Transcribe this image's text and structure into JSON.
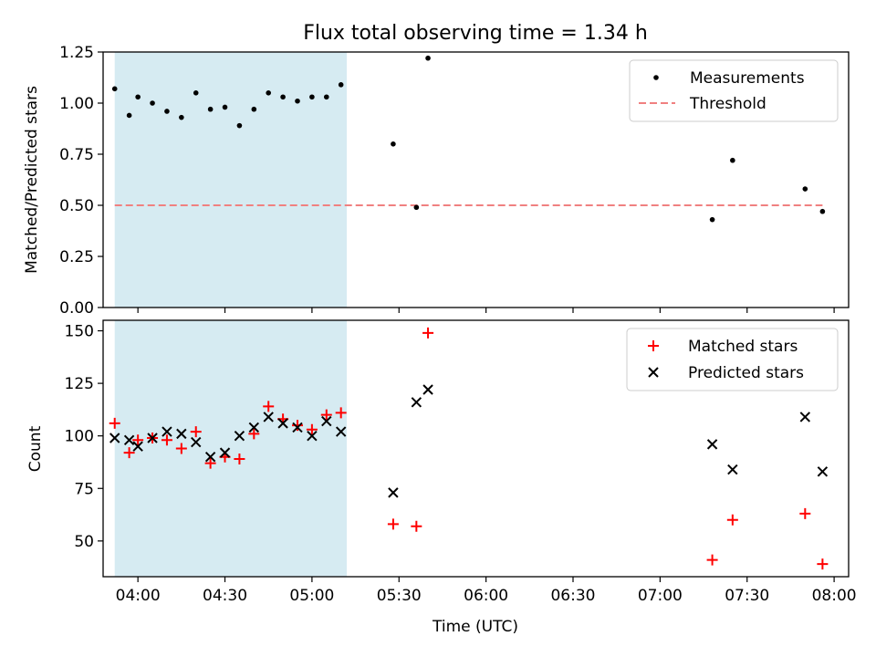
{
  "chart_data": [
    {
      "type": "scatter",
      "title": "Flux total observing time = 1.34 h",
      "xlabel": "",
      "ylabel": "Matched/Predicted stars",
      "ylim": [
        0,
        1.25
      ],
      "yticks": [
        "0.00",
        "0.25",
        "0.50",
        "0.75",
        "1.00",
        "1.25"
      ],
      "xticks": [
        "04:00",
        "04:30",
        "05:00",
        "05:30",
        "06:00",
        "06:30",
        "07:00",
        "07:30",
        "08:00"
      ],
      "xlim": [
        "03:48",
        "08:05"
      ],
      "shaded_interval": [
        "03:52",
        "05:12"
      ],
      "shade_color": "#add8e6",
      "legend_position": "top-right",
      "legend": [
        "Measurements",
        "Threshold"
      ],
      "threshold": {
        "name": "Threshold",
        "value": 0.5,
        "x_start": "03:52",
        "x_end": "07:56",
        "color": "#f08080",
        "style": "dashed"
      },
      "series": [
        {
          "name": "Measurements",
          "color": "#000000",
          "marker": "dot",
          "points": [
            [
              "03:52",
              1.07
            ],
            [
              "03:57",
              0.94
            ],
            [
              "04:00",
              1.03
            ],
            [
              "04:05",
              1.0
            ],
            [
              "04:10",
              0.96
            ],
            [
              "04:15",
              0.93
            ],
            [
              "04:20",
              1.05
            ],
            [
              "04:25",
              0.97
            ],
            [
              "04:30",
              0.98
            ],
            [
              "04:35",
              0.89
            ],
            [
              "04:40",
              0.97
            ],
            [
              "04:45",
              1.05
            ],
            [
              "04:50",
              1.03
            ],
            [
              "04:55",
              1.01
            ],
            [
              "05:00",
              1.03
            ],
            [
              "05:05",
              1.03
            ],
            [
              "05:10",
              1.09
            ],
            [
              "05:28",
              0.8
            ],
            [
              "05:36",
              0.49
            ],
            [
              "05:40",
              1.22
            ],
            [
              "07:18",
              0.43
            ],
            [
              "07:25",
              0.72
            ],
            [
              "07:50",
              0.58
            ],
            [
              "07:56",
              0.47
            ]
          ]
        }
      ]
    },
    {
      "type": "scatter",
      "title": "",
      "xlabel": "Time (UTC)",
      "ylabel": "Count",
      "ylim": [
        33,
        155
      ],
      "yticks": [
        "50",
        "75",
        "100",
        "125",
        "150"
      ],
      "xticks": [
        "04:00",
        "04:30",
        "05:00",
        "05:30",
        "06:00",
        "06:30",
        "07:00",
        "07:30",
        "08:00"
      ],
      "xlim": [
        "03:48",
        "08:05"
      ],
      "shaded_interval": [
        "03:52",
        "05:12"
      ],
      "shade_color": "#add8e6",
      "legend_position": "top-right",
      "legend": [
        "Matched stars",
        "Predicted stars"
      ],
      "series": [
        {
          "name": "Matched stars",
          "color": "#ff0000",
          "marker": "plus",
          "points": [
            [
              "03:52",
              106
            ],
            [
              "03:57",
              92
            ],
            [
              "04:00",
              98
            ],
            [
              "04:05",
              99
            ],
            [
              "04:10",
              98
            ],
            [
              "04:15",
              94
            ],
            [
              "04:20",
              102
            ],
            [
              "04:25",
              87
            ],
            [
              "04:30",
              90
            ],
            [
              "04:35",
              89
            ],
            [
              "04:40",
              101
            ],
            [
              "04:45",
              114
            ],
            [
              "04:50",
              108
            ],
            [
              "04:55",
              105
            ],
            [
              "05:00",
              103
            ],
            [
              "05:05",
              110
            ],
            [
              "05:10",
              111
            ],
            [
              "05:28",
              58
            ],
            [
              "05:36",
              57
            ],
            [
              "05:40",
              149
            ],
            [
              "07:18",
              41
            ],
            [
              "07:25",
              60
            ],
            [
              "07:50",
              63
            ],
            [
              "07:56",
              39
            ]
          ]
        },
        {
          "name": "Predicted stars",
          "color": "#000000",
          "marker": "x",
          "points": [
            [
              "03:52",
              99
            ],
            [
              "03:57",
              98
            ],
            [
              "04:00",
              95
            ],
            [
              "04:05",
              99
            ],
            [
              "04:10",
              102
            ],
            [
              "04:15",
              101
            ],
            [
              "04:20",
              97
            ],
            [
              "04:25",
              90
            ],
            [
              "04:30",
              92
            ],
            [
              "04:35",
              100
            ],
            [
              "04:40",
              104
            ],
            [
              "04:45",
              109
            ],
            [
              "04:50",
              106
            ],
            [
              "04:55",
              104
            ],
            [
              "05:00",
              100
            ],
            [
              "05:05",
              107
            ],
            [
              "05:10",
              102
            ],
            [
              "05:28",
              73
            ],
            [
              "05:36",
              116
            ],
            [
              "05:40",
              122
            ],
            [
              "07:18",
              96
            ],
            [
              "07:25",
              84
            ],
            [
              "07:50",
              109
            ],
            [
              "07:56",
              83
            ]
          ]
        }
      ]
    }
  ]
}
